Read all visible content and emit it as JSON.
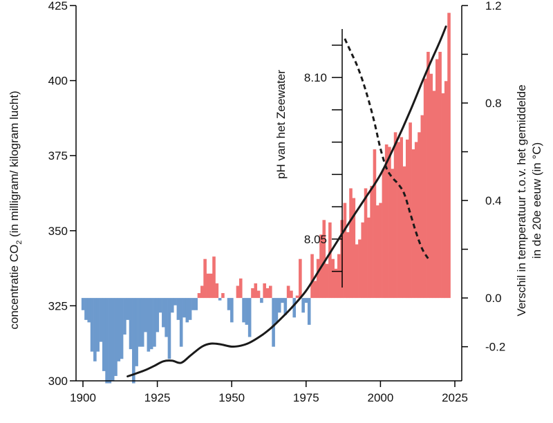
{
  "chart_data": {
    "type": "bar+line",
    "colors": {
      "warm": "#f07272",
      "cold": "#6d9acd",
      "line": "#1a1a1a",
      "axis": "#000000"
    },
    "x_axis": {
      "range": [
        1900,
        2025
      ],
      "ticks": [
        "1900",
        "1925",
        "1950",
        "1975",
        "2000",
        "2025"
      ]
    },
    "left_axis": {
      "title_main": "concentratie CO",
      "title_sub": "2",
      "title_rest": " (in milligram/ kilogram lucht)",
      "range": [
        300,
        425
      ],
      "ticks": [
        "300",
        "325",
        "350",
        "375",
        "400",
        "425"
      ]
    },
    "right_axis": {
      "title_line1": "Verschil in temperatuur t.o.v. het gemiddelde",
      "title_line2": "in de 20e eeuw (in °C)",
      "range": [
        -0.34,
        1.2
      ],
      "ticks": [
        "-0.2",
        "0.0",
        "0.4",
        "0.8",
        "1.2"
      ],
      "minor_ticks": [
        0.2,
        0.6,
        1.0
      ]
    },
    "ph_axis": {
      "title": "pH van het Zeewater",
      "range": [
        8.035,
        8.115
      ],
      "ticks": [
        "8.05",
        "8.10"
      ]
    },
    "temperature_anomaly": {
      "years_start": 1900,
      "values": [
        -0.05,
        -0.09,
        -0.1,
        -0.22,
        -0.26,
        -0.22,
        -0.18,
        -0.3,
        -0.35,
        -0.35,
        -0.34,
        -0.32,
        -0.26,
        -0.25,
        -0.15,
        -0.09,
        -0.21,
        -0.35,
        -0.28,
        -0.2,
        -0.2,
        -0.14,
        -0.22,
        -0.21,
        -0.2,
        -0.14,
        -0.06,
        -0.12,
        -0.16,
        -0.25,
        -0.06,
        -0.03,
        -0.09,
        -0.2,
        -0.08,
        -0.1,
        -0.09,
        -0.05,
        -0.05,
        0.02,
        0.05,
        0.16,
        0.1,
        0.1,
        0.17,
        0.06,
        -0.01,
        0.02,
        0.0,
        -0.05,
        -0.1,
        0.0,
        0.05,
        0.08,
        -0.1,
        -0.11,
        -0.16,
        0.04,
        0.06,
        0.03,
        -0.02,
        0.06,
        0.04,
        0.05,
        -0.2,
        -0.1,
        -0.06,
        -0.02,
        -0.07,
        0.05,
        0.03,
        -0.08,
        0.01,
        0.16,
        -0.06,
        -0.02,
        -0.11,
        0.18,
        0.07,
        0.16,
        0.26,
        0.32,
        0.14,
        0.31,
        0.16,
        0.12,
        0.18,
        0.32,
        0.39,
        0.27,
        0.45,
        0.41,
        0.22,
        0.24,
        0.31,
        0.45,
        0.33,
        0.46,
        0.61,
        0.38,
        0.39,
        0.53,
        0.63,
        0.62,
        0.53,
        0.68,
        0.64,
        0.66,
        0.54,
        0.65,
        0.72,
        0.61,
        0.64,
        0.68,
        0.75,
        0.9,
        1.01,
        0.92,
        0.85,
        0.98,
        1.01,
        0.84,
        0.89,
        1.17
      ]
    },
    "co2_concentration": {
      "x": [
        1915,
        1918,
        1921,
        1924,
        1927,
        1930,
        1933,
        1936,
        1940,
        1943,
        1946,
        1950,
        1953,
        1956,
        1960,
        1963,
        1966,
        1970,
        1975,
        1980,
        1985,
        1990,
        1995,
        2000,
        2005,
        2010,
        2015,
        2020,
        2022
      ],
      "y": [
        301.5,
        302.5,
        303.6,
        305.0,
        306.5,
        306.7,
        306.0,
        308.3,
        311.4,
        312.4,
        312.2,
        311.4,
        311.7,
        312.7,
        315.1,
        317.4,
        320.2,
        324.2,
        330.0,
        337.8,
        345.7,
        353.5,
        361.0,
        368.7,
        378.8,
        389.9,
        401.9,
        413.1,
        418.0
      ]
    },
    "ph_seawater": {
      "x": [
        1988,
        1990,
        1992,
        1994,
        1996,
        1998,
        2000,
        2002,
        2004,
        2006,
        2008,
        2010,
        2012,
        2014,
        2016
      ],
      "y": [
        8.112,
        8.108,
        8.104,
        8.099,
        8.093,
        8.086,
        8.078,
        8.072,
        8.069,
        8.067,
        8.064,
        8.058,
        8.052,
        8.047,
        8.044
      ]
    }
  }
}
